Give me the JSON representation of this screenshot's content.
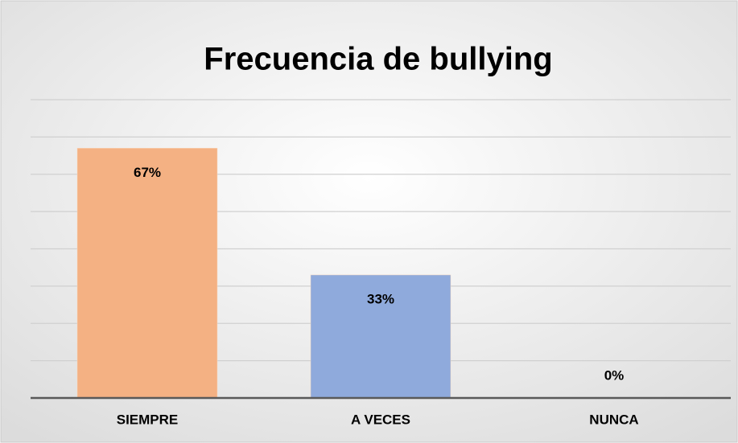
{
  "chart_data": {
    "type": "bar",
    "title": "Frecuencia de bullying",
    "categories": [
      "SIEMPRE",
      "A VECES",
      "NUNCA"
    ],
    "values": [
      67,
      33,
      0
    ],
    "value_labels": [
      "67%",
      "33%",
      "0%"
    ],
    "colors": [
      "#f4b183",
      "#8faadc",
      "#a9d18e"
    ],
    "ylim": [
      0,
      80
    ],
    "yticks": [
      0,
      10,
      20,
      30,
      40,
      50,
      60,
      70,
      80
    ],
    "grid": true
  }
}
